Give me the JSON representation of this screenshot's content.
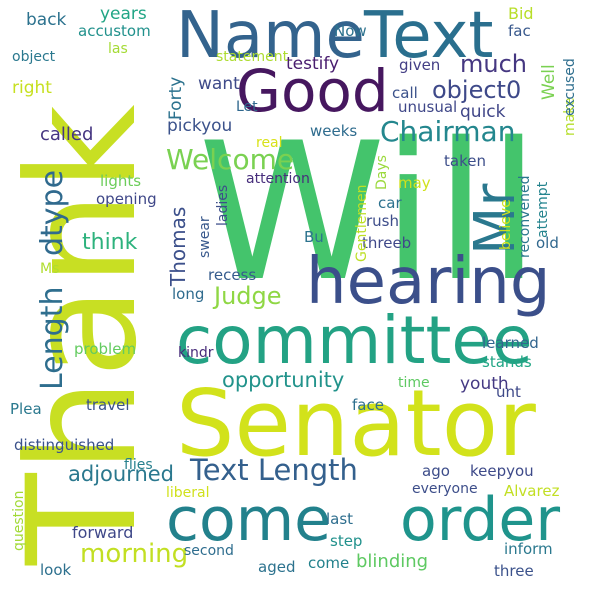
{
  "colors": {
    "background": "#ffffff",
    "palette": [
      "#440154",
      "#472d7b",
      "#3b528b",
      "#2c728e",
      "#21918c",
      "#28ae80",
      "#5ec962",
      "#addc30",
      "#d0e11c",
      "#fde725"
    ]
  },
  "words": [
    {
      "text": "Will",
      "color": "#44c46c"
    },
    {
      "text": "Thank",
      "color": "#c8df23"
    },
    {
      "text": "Senator",
      "color": "#d2e21b"
    },
    {
      "text": "committee",
      "color": "#23a284"
    },
    {
      "text": "come",
      "color": "#22818c"
    },
    {
      "text": "order",
      "color": "#1f948c"
    },
    {
      "text": "hearing",
      "color": "#3b4f8a"
    },
    {
      "text": "Name",
      "color": "#33638d"
    },
    {
      "text": "Text",
      "color": "#2a6f8e"
    },
    {
      "text": "Good",
      "color": "#46175f"
    },
    {
      "text": "Mr",
      "color": "#2a788e"
    },
    {
      "text": "Length",
      "color": "#2e6e8e"
    },
    {
      "text": "dtype",
      "color": "#306a8e"
    },
    {
      "text": "Welcome",
      "color": "#7ad151"
    },
    {
      "text": "Chairman",
      "color": "#24878e"
    },
    {
      "text": "Text Length",
      "color": "#34608d"
    },
    {
      "text": "opportunity",
      "color": "#22938b"
    },
    {
      "text": "Judge",
      "color": "#8fd744"
    },
    {
      "text": "much",
      "color": "#453781"
    },
    {
      "text": "object0",
      "color": "#3e4989"
    },
    {
      "text": "adjourned",
      "color": "#2a788e"
    },
    {
      "text": "morning",
      "color": "#c2df23"
    },
    {
      "text": "forward",
      "color": "#3f4889"
    },
    {
      "text": "blinding",
      "color": "#5ec962"
    },
    {
      "text": "think",
      "color": "#2db27d"
    },
    {
      "text": "Thomas",
      "color": "#3c508b"
    },
    {
      "text": "called",
      "color": "#453581"
    },
    {
      "text": "pickyou",
      "color": "#3b528b"
    },
    {
      "text": "testify",
      "color": "#481c6e"
    },
    {
      "text": "given",
      "color": "#433e85"
    },
    {
      "text": "Well",
      "color": "#7ad151"
    },
    {
      "text": "Bid",
      "color": "#b8de29"
    },
    {
      "text": "years",
      "color": "#21a585"
    },
    {
      "text": "back",
      "color": "#2c728e"
    },
    {
      "text": "accustom",
      "color": "#21918c"
    },
    {
      "text": "las",
      "color": "#a5db36"
    },
    {
      "text": "object",
      "color": "#2a788e"
    },
    {
      "text": "statement",
      "color": "#addc30"
    },
    {
      "text": "right",
      "color": "#c7e020"
    },
    {
      "text": "want",
      "color": "#3e4a89"
    },
    {
      "text": "Forty",
      "color": "#2c728e"
    },
    {
      "text": "Let",
      "color": "#31688e"
    },
    {
      "text": "call",
      "color": "#3b528b"
    },
    {
      "text": "unusual",
      "color": "#3f4788"
    },
    {
      "text": "quick",
      "color": "#404688"
    },
    {
      "text": "make",
      "color": "#b5de2b"
    },
    {
      "text": "excused",
      "color": "#2e6e8e"
    },
    {
      "text": "Now",
      "color": "#2c728e"
    },
    {
      "text": "fac",
      "color": "#38588c"
    },
    {
      "text": "weeks",
      "color": "#2f6c8e"
    },
    {
      "text": "real",
      "color": "#d8e219"
    },
    {
      "text": "taken",
      "color": "#3d4e8a"
    },
    {
      "text": "Days",
      "color": "#9bd93c"
    },
    {
      "text": "may",
      "color": "#d0e11c"
    },
    {
      "text": "lights",
      "color": "#6ccd5a"
    },
    {
      "text": "opening",
      "color": "#3f4788"
    },
    {
      "text": "attention",
      "color": "#472e7c"
    },
    {
      "text": "car",
      "color": "#2c718e"
    },
    {
      "text": "rush",
      "color": "#3d4d8a"
    },
    {
      "text": "threeb",
      "color": "#3f4889"
    },
    {
      "text": "Gentlemen",
      "color": "#bddf26"
    },
    {
      "text": "believe",
      "color": "#cde11d"
    },
    {
      "text": "reconvened",
      "color": "#2a778e"
    },
    {
      "text": "attempt",
      "color": "#25848e"
    },
    {
      "text": "old",
      "color": "#31688e"
    },
    {
      "text": "swear",
      "color": "#38588c"
    },
    {
      "text": "ladies",
      "color": "#3d4e8a"
    },
    {
      "text": "Bu",
      "color": "#2c738e"
    },
    {
      "text": "Ms",
      "color": "#b0dd2f"
    },
    {
      "text": "recess",
      "color": "#365c8d"
    },
    {
      "text": "long",
      "color": "#2f6b8e"
    },
    {
      "text": "problem",
      "color": "#63cb5f"
    },
    {
      "text": "learned",
      "color": "#32658e"
    },
    {
      "text": "stands",
      "color": "#21a685"
    },
    {
      "text": "kindr",
      "color": "#472c7a"
    },
    {
      "text": "time",
      "color": "#5ec962"
    },
    {
      "text": "youth",
      "color": "#443983"
    },
    {
      "text": "unt",
      "color": "#3e4989"
    },
    {
      "text": "Plea",
      "color": "#2a788e"
    },
    {
      "text": "travel",
      "color": "#3b528b"
    },
    {
      "text": "face",
      "color": "#2e6f8e"
    },
    {
      "text": "distinguished",
      "color": "#3b528b"
    },
    {
      "text": "flies",
      "color": "#27808e"
    },
    {
      "text": "ago",
      "color": "#3d4d8a"
    },
    {
      "text": "keepyou",
      "color": "#3e4a89"
    },
    {
      "text": "question",
      "color": "#a2da37"
    },
    {
      "text": "liberal",
      "color": "#d0e11c"
    },
    {
      "text": "everyone",
      "color": "#3d4e8a"
    },
    {
      "text": "Alvarez",
      "color": "#c2df23"
    },
    {
      "text": "last",
      "color": "#2e6e8e"
    },
    {
      "text": "inform",
      "color": "#2a788e"
    },
    {
      "text": "second",
      "color": "#2e6d8e"
    },
    {
      "text": "step",
      "color": "#21918c"
    },
    {
      "text": "look",
      "color": "#2d708e"
    },
    {
      "text": "aged",
      "color": "#2c728e"
    },
    {
      "text": "three",
      "color": "#3b528b"
    }
  ]
}
